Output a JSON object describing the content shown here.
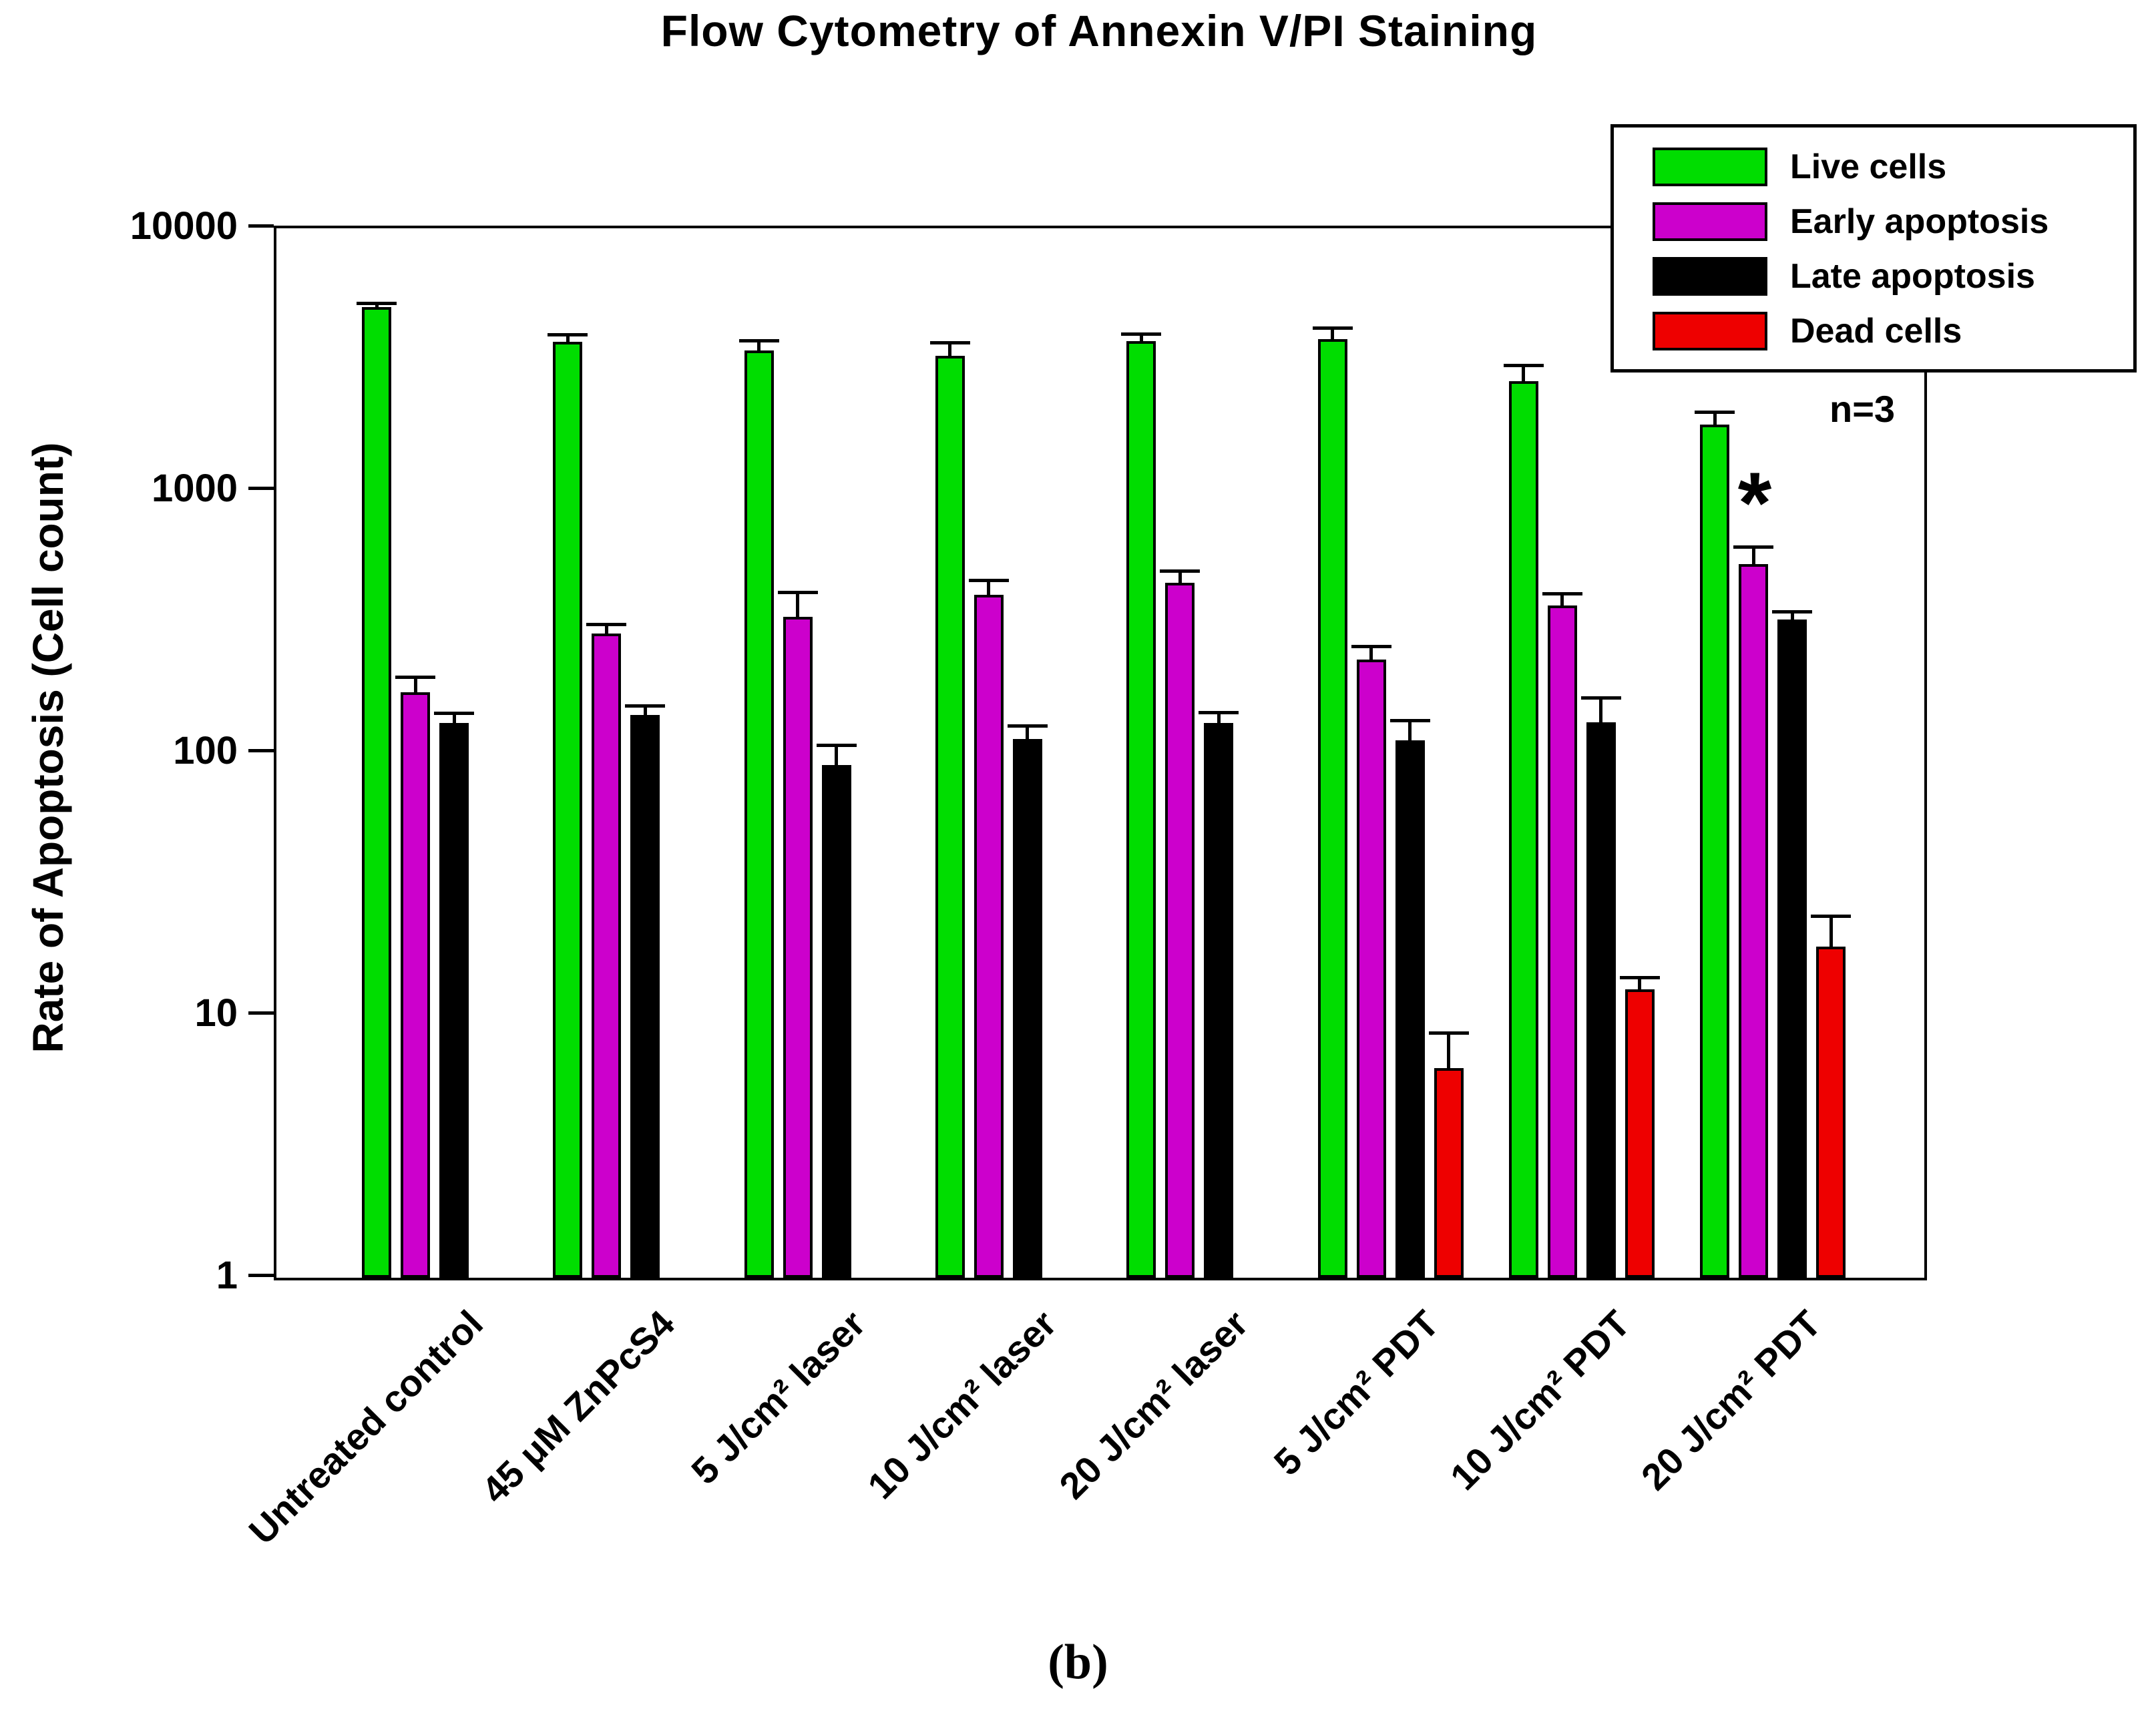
{
  "title": "Flow Cytometry of Annexin V/PI Staining",
  "caption": "(b)",
  "chart_data": {
    "type": "bar",
    "title": "Flow Cytometry of Annexin V/PI Staining",
    "ylabel": "Rate of Apoptosis (Cell count)",
    "xlabel": "",
    "y_scale": "log",
    "ylim": [
      1,
      10000
    ],
    "ytick_labels": [
      "1",
      "10",
      "100",
      "1000",
      "10000"
    ],
    "grid": "off",
    "legend_position": "top-right",
    "replicates": "n=3",
    "categories": [
      "Untreated control",
      "45 μM ZnPcS4",
      "5 J/cm² laser",
      "10 J/cm² laser",
      "20 J/cm² laser",
      "5 J/cm² PDT",
      "10 J/cm² PDT",
      "20 J/cm² PDT"
    ],
    "series": [
      {
        "name": "Live cells",
        "color": "#00DD00",
        "values": [
          5000,
          3700,
          3420,
          3270,
          3720,
          3780,
          2620,
          1790
        ],
        "error_top": [
          5200,
          3950,
          3730,
          3680,
          3970,
          4180,
          3000,
          2000
        ]
      },
      {
        "name": "Early apoptosis",
        "color": "#CC00CC",
        "values": [
          170,
          285,
          330,
          400,
          445,
          227,
          365,
          525
        ],
        "error_top": [
          195,
          310,
          410,
          455,
          495,
          255,
          405,
          610
        ]
      },
      {
        "name": "Late apoptosis",
        "color": "#000000",
        "values": [
          130,
          140,
          90,
          113,
          130,
          112,
          131,
          323
        ],
        "error_top": [
          142,
          152,
          107,
          127,
          143,
          133,
          163,
          347
        ]
      },
      {
        "name": "Dead cells",
        "color": "#EE0000",
        "values": [
          null,
          null,
          null,
          null,
          null,
          6.3,
          12.6,
          18.3
        ],
        "error_top": [
          null,
          null,
          null,
          null,
          null,
          8.6,
          14,
          24
        ]
      }
    ],
    "significance_marker": {
      "symbol": "*",
      "category": "20 J/cm² PDT",
      "series": "Early apoptosis"
    }
  }
}
